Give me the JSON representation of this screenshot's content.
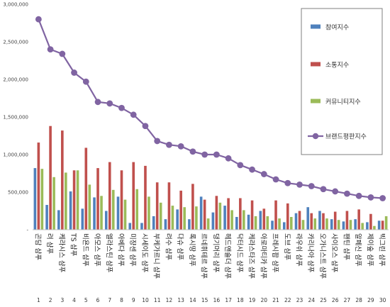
{
  "chart_data": {
    "type": "bar",
    "title": "",
    "xlabel": "",
    "ylabel": "",
    "ylim": [
      0,
      3000000
    ],
    "yticks": [
      "-",
      "500,000",
      "1,000,000",
      "1,500,000",
      "2,000,000",
      "2,500,000",
      "3,000,000"
    ],
    "grid": false,
    "legend_position": "top-right",
    "categories": [
      "곤담 샴푸",
      "려 샴푸",
      "케라시스 샴푸",
      "TS 샴푸",
      "비욘드 샴푸",
      "아모스 샴푸",
      "엘라스틴 샴푸",
      "아베다 샴푸",
      "미쟝센 샴푸",
      "시세이도 샴푸",
      "부케가르니 샴푸",
      "려수 샴푸",
      "다슈 샴푸",
      "록시땅 샴푸",
      "르네휘테르 샴푸",
      "댕기머리 샴푸",
      "헤드앤숄더 샴푸",
      "닥터시드 샴푸",
      "케라스타즈 샴푸",
      "아로마티카 샴푸",
      "프레시팝 샴푸",
      "도브 샴푸",
      "라우쉬 샴푸",
      "카리나아 샴푸",
      "오가니스트 샴푸",
      "사이오스 샴푸",
      "팬틴 샴푸",
      "알페신 샴푸",
      "제이숲 샴푸",
      "빅그린 샴푸"
    ],
    "ranks": [
      "1",
      "2",
      "3",
      "4",
      "5",
      "6",
      "7",
      "8",
      "9",
      "10",
      "11",
      "12",
      "13",
      "14",
      "15",
      "16",
      "17",
      "18",
      "19",
      "20",
      "21",
      "22",
      "23",
      "24",
      "25",
      "26",
      "27",
      "28",
      "29",
      "30"
    ],
    "series": [
      {
        "name": "참여지수",
        "type": "bar",
        "color": "#4f81bd",
        "values": [
          820000,
          330000,
          260000,
          510000,
          280000,
          430000,
          250000,
          440000,
          90000,
          90000,
          180000,
          140000,
          270000,
          140000,
          440000,
          230000,
          320000,
          170000,
          200000,
          250000,
          120000,
          100000,
          220000,
          300000,
          250000,
          140000,
          110000,
          140000,
          100000,
          120000
        ]
      },
      {
        "name": "소통지수",
        "type": "bar",
        "color": "#c0504d",
        "values": [
          1160000,
          1380000,
          1320000,
          790000,
          1090000,
          820000,
          900000,
          790000,
          900000,
          850000,
          630000,
          630000,
          520000,
          610000,
          400000,
          450000,
          420000,
          420000,
          390000,
          280000,
          390000,
          350000,
          250000,
          220000,
          220000,
          240000,
          250000,
          270000,
          210000,
          120000
        ]
      },
      {
        "name": "커뮤니티지수",
        "type": "bar",
        "color": "#9bbb59",
        "values": [
          810000,
          700000,
          760000,
          790000,
          600000,
          450000,
          530000,
          400000,
          540000,
          440000,
          360000,
          320000,
          300000,
          310000,
          150000,
          360000,
          260000,
          260000,
          180000,
          180000,
          150000,
          170000,
          130000,
          150000,
          150000,
          130000,
          130000,
          90000,
          50000,
          180000
        ]
      },
      {
        "name": "브랜드평판지수",
        "type": "line",
        "color": "#8064a2",
        "values": [
          2800000,
          2400000,
          2340000,
          2090000,
          1970000,
          1700000,
          1680000,
          1620000,
          1530000,
          1380000,
          1180000,
          1130000,
          1110000,
          1040000,
          1000000,
          1000000,
          950000,
          860000,
          800000,
          740000,
          670000,
          620000,
          600000,
          580000,
          540000,
          510000,
          480000,
          450000,
          430000,
          420000
        ]
      }
    ]
  }
}
